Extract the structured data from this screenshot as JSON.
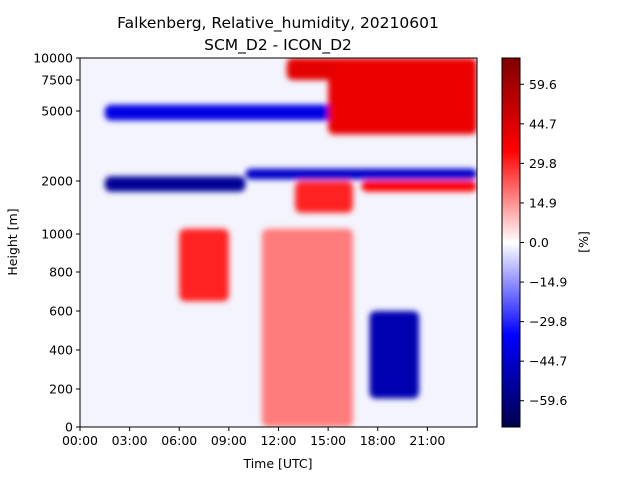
{
  "chart_data": {
    "type": "heatmap",
    "title": "Falkenberg, Relative_humidity, 20210601",
    "subtitle": "SCM_D2 - ICON_D2",
    "xlabel": "Time [UTC]",
    "ylabel": "Height [m]",
    "colorbar_label": "[%]",
    "colormap": "seismic",
    "x_ticks": [
      "00:00",
      "03:00",
      "06:00",
      "09:00",
      "12:00",
      "15:00",
      "18:00",
      "21:00"
    ],
    "y_ticks": [
      "0",
      "200",
      "400",
      "600",
      "800",
      "1000",
      "2000",
      "5000",
      "7500",
      "10000"
    ],
    "colorbar_ticks": [
      "59.6",
      "44.7",
      "29.8",
      "14.9",
      "0.0",
      "−14.9",
      "−29.8",
      "−44.7",
      "−59.6"
    ],
    "value_range": [
      -69.5,
      69.5
    ],
    "features": [
      {
        "time": [
          1.5,
          10.0
        ],
        "height": "2000",
        "value": -55
      },
      {
        "time": [
          10.0,
          24.0
        ],
        "height": "2300",
        "value": -45
      },
      {
        "time": [
          6.0,
          9.0
        ],
        "height": [
          650,
          1100
        ],
        "value": 30
      },
      {
        "time": [
          13.0,
          16.5
        ],
        "height": [
          1400,
          2000
        ],
        "value": 30
      },
      {
        "time": [
          11.0,
          16.5
        ],
        "height": [
          0,
          1100
        ],
        "value": 18
      },
      {
        "time": [
          17.0,
          24.0
        ],
        "height": [
          1800,
          2000
        ],
        "value": 35
      },
      {
        "time": [
          17.5,
          20.5
        ],
        "height": [
          150,
          600
        ],
        "value": -50
      },
      {
        "time": [
          1.5,
          16.0
        ],
        "height": [
          4600,
          5500
        ],
        "value": -40
      },
      {
        "time": [
          15.0,
          24.0
        ],
        "height": [
          4000,
          10000
        ],
        "value": 40
      },
      {
        "time": [
          12.5,
          15.5
        ],
        "height": [
          7500,
          10000
        ],
        "value": 42
      }
    ]
  }
}
